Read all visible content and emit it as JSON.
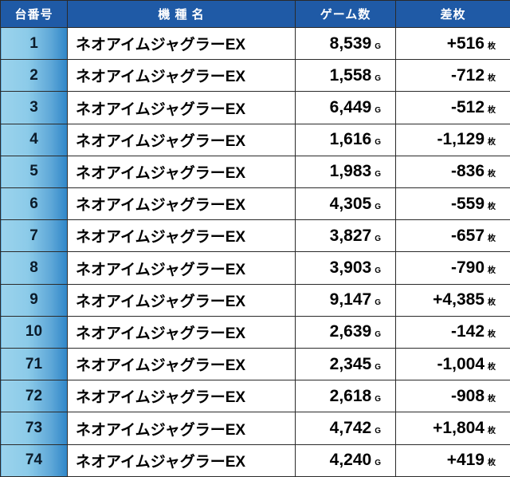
{
  "table": {
    "headers": {
      "number": "台番号",
      "model": "機 種 名",
      "games": "ゲーム数",
      "diff": "差枚"
    },
    "units": {
      "games": "G",
      "diff": "枚"
    },
    "rows": [
      {
        "number": "1",
        "model": "ネオアイムジャグラーEX",
        "games": "8,539",
        "diff": "+516"
      },
      {
        "number": "2",
        "model": "ネオアイムジャグラーEX",
        "games": "1,558",
        "diff": "-712"
      },
      {
        "number": "3",
        "model": "ネオアイムジャグラーEX",
        "games": "6,449",
        "diff": "-512"
      },
      {
        "number": "4",
        "model": "ネオアイムジャグラーEX",
        "games": "1,616",
        "diff": "-1,129"
      },
      {
        "number": "5",
        "model": "ネオアイムジャグラーEX",
        "games": "1,983",
        "diff": "-836"
      },
      {
        "number": "6",
        "model": "ネオアイムジャグラーEX",
        "games": "4,305",
        "diff": "-559"
      },
      {
        "number": "7",
        "model": "ネオアイムジャグラーEX",
        "games": "3,827",
        "diff": "-657"
      },
      {
        "number": "8",
        "model": "ネオアイムジャグラーEX",
        "games": "3,903",
        "diff": "-790"
      },
      {
        "number": "9",
        "model": "ネオアイムジャグラーEX",
        "games": "9,147",
        "diff": "+4,385"
      },
      {
        "number": "10",
        "model": "ネオアイムジャグラーEX",
        "games": "2,639",
        "diff": "-142"
      },
      {
        "number": "71",
        "model": "ネオアイムジャグラーEX",
        "games": "2,345",
        "diff": "-1,004"
      },
      {
        "number": "72",
        "model": "ネオアイムジャグラーEX",
        "games": "2,618",
        "diff": "-908"
      },
      {
        "number": "73",
        "model": "ネオアイムジャグラーEX",
        "games": "4,742",
        "diff": "+1,804"
      },
      {
        "number": "74",
        "model": "ネオアイムジャグラーEX",
        "games": "4,240",
        "diff": "+419"
      }
    ]
  },
  "colors": {
    "header_bg": "#1f5aa6",
    "header_text": "#ffffff",
    "number_cell_light": "#9bd3ec",
    "number_cell_dark": "#2f86c8",
    "border": "#2a2a2a"
  }
}
